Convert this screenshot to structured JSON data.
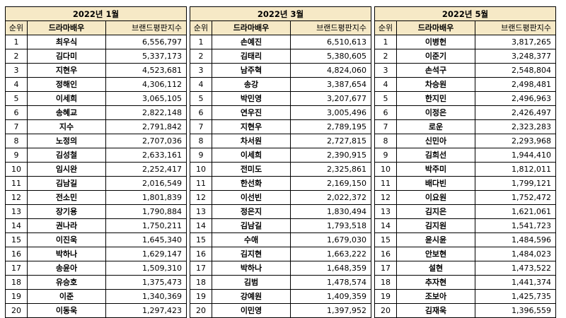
{
  "headers": {
    "rank": "순위",
    "name": "드라마배우",
    "score": "브랜드평판지수"
  },
  "tables": [
    {
      "title": "2022년 1월",
      "rows": [
        {
          "rank": "1",
          "name": "최우식",
          "score": "6,556,797"
        },
        {
          "rank": "2",
          "name": "김다미",
          "score": "5,337,173"
        },
        {
          "rank": "3",
          "name": "지현우",
          "score": "4,523,681"
        },
        {
          "rank": "4",
          "name": "정해인",
          "score": "4,306,112"
        },
        {
          "rank": "5",
          "name": "이세희",
          "score": "3,065,105"
        },
        {
          "rank": "6",
          "name": "송혜교",
          "score": "2,822,148"
        },
        {
          "rank": "7",
          "name": "지수",
          "score": "2,791,842"
        },
        {
          "rank": "8",
          "name": "노정의",
          "score": "2,707,036"
        },
        {
          "rank": "9",
          "name": "김성철",
          "score": "2,633,161"
        },
        {
          "rank": "10",
          "name": "임시완",
          "score": "2,252,417"
        },
        {
          "rank": "11",
          "name": "김남길",
          "score": "2,016,549"
        },
        {
          "rank": "12",
          "name": "전소민",
          "score": "1,801,839"
        },
        {
          "rank": "13",
          "name": "장기용",
          "score": "1,790,884"
        },
        {
          "rank": "14",
          "name": "권나라",
          "score": "1,750,211"
        },
        {
          "rank": "15",
          "name": "이진욱",
          "score": "1,645,340"
        },
        {
          "rank": "16",
          "name": "박하나",
          "score": "1,629,147"
        },
        {
          "rank": "17",
          "name": "송윤아",
          "score": "1,509,310"
        },
        {
          "rank": "18",
          "name": "유승호",
          "score": "1,375,473"
        },
        {
          "rank": "19",
          "name": "이준",
          "score": "1,340,369"
        },
        {
          "rank": "20",
          "name": "이동욱",
          "score": "1,297,423"
        }
      ]
    },
    {
      "title": "2022년 3월",
      "rows": [
        {
          "rank": "1",
          "name": "손예진",
          "score": "6,510,613"
        },
        {
          "rank": "2",
          "name": "김태리",
          "score": "5,380,605"
        },
        {
          "rank": "3",
          "name": "남주혁",
          "score": "4,824,060"
        },
        {
          "rank": "4",
          "name": "송강",
          "score": "3,387,654"
        },
        {
          "rank": "5",
          "name": "박민영",
          "score": "3,207,677"
        },
        {
          "rank": "6",
          "name": "연우진",
          "score": "3,005,496"
        },
        {
          "rank": "7",
          "name": "지현우",
          "score": "2,789,195"
        },
        {
          "rank": "8",
          "name": "차서원",
          "score": "2,727,815"
        },
        {
          "rank": "9",
          "name": "이세희",
          "score": "2,390,915"
        },
        {
          "rank": "10",
          "name": "전미도",
          "score": "2,325,861"
        },
        {
          "rank": "11",
          "name": "한선화",
          "score": "2,169,150"
        },
        {
          "rank": "12",
          "name": "이선빈",
          "score": "2,022,372"
        },
        {
          "rank": "13",
          "name": "정은지",
          "score": "1,830,494"
        },
        {
          "rank": "14",
          "name": "김남길",
          "score": "1,793,518"
        },
        {
          "rank": "15",
          "name": "수애",
          "score": "1,679,030"
        },
        {
          "rank": "16",
          "name": "김지현",
          "score": "1,663,222"
        },
        {
          "rank": "17",
          "name": "박하나",
          "score": "1,648,359"
        },
        {
          "rank": "18",
          "name": "김범",
          "score": "1,478,574"
        },
        {
          "rank": "19",
          "name": "강예원",
          "score": "1,409,359"
        },
        {
          "rank": "20",
          "name": "이민영",
          "score": "1,397,952"
        }
      ]
    },
    {
      "title": "2022년 5월",
      "rows": [
        {
          "rank": "1",
          "name": "이병헌",
          "score": "3,817,265"
        },
        {
          "rank": "2",
          "name": "이준기",
          "score": "3,248,377"
        },
        {
          "rank": "3",
          "name": "손석구",
          "score": "2,548,804"
        },
        {
          "rank": "4",
          "name": "차승원",
          "score": "2,498,481"
        },
        {
          "rank": "5",
          "name": "한지민",
          "score": "2,496,963"
        },
        {
          "rank": "6",
          "name": "이정은",
          "score": "2,426,497"
        },
        {
          "rank": "7",
          "name": "로운",
          "score": "2,323,283"
        },
        {
          "rank": "8",
          "name": "신민아",
          "score": "2,293,968"
        },
        {
          "rank": "9",
          "name": "김희선",
          "score": "1,944,410"
        },
        {
          "rank": "10",
          "name": "박주미",
          "score": "1,812,011"
        },
        {
          "rank": "11",
          "name": "배다빈",
          "score": "1,799,121"
        },
        {
          "rank": "12",
          "name": "이요원",
          "score": "1,752,472"
        },
        {
          "rank": "13",
          "name": "김지은",
          "score": "1,621,061"
        },
        {
          "rank": "14",
          "name": "김지원",
          "score": "1,541,723"
        },
        {
          "rank": "15",
          "name": "윤시윤",
          "score": "1,484,596"
        },
        {
          "rank": "16",
          "name": "안보현",
          "score": "1,484,023"
        },
        {
          "rank": "17",
          "name": "설현",
          "score": "1,473,522"
        },
        {
          "rank": "18",
          "name": "추자현",
          "score": "1,441,374"
        },
        {
          "rank": "19",
          "name": "조보아",
          "score": "1,425,735"
        },
        {
          "rank": "20",
          "name": "김재욱",
          "score": "1,396,559"
        }
      ]
    }
  ]
}
